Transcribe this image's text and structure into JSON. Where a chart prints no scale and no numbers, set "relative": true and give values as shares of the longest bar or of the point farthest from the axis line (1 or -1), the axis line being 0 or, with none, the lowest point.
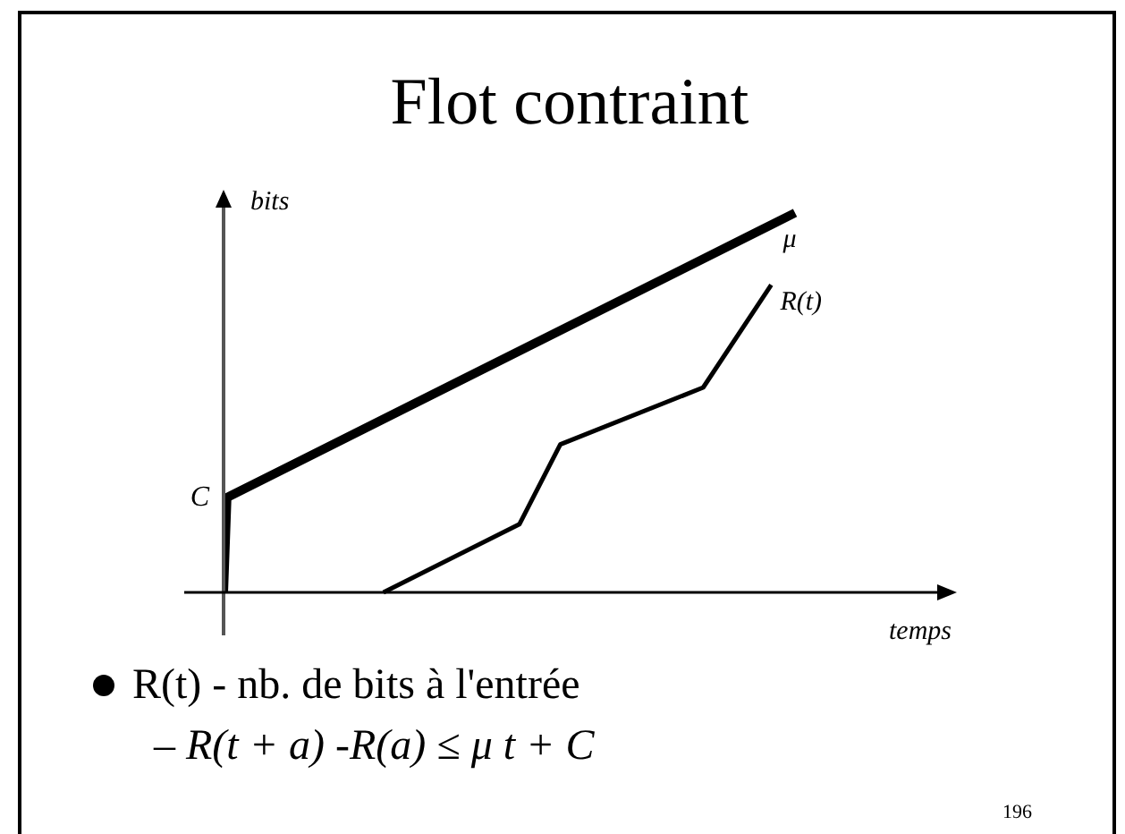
{
  "chart_data": {
    "type": "line",
    "title": "Flot contraint",
    "xlabel": "temps",
    "ylabel": "bits",
    "relative": true,
    "tick_labels": false,
    "legend": false,
    "grid": false,
    "marker": "none",
    "line_style": "solid",
    "categories": [
      null,
      null,
      null,
      null,
      null,
      null,
      null,
      null,
      null,
      null,
      null,
      null,
      null,
      null,
      null,
      null,
      null,
      null,
      null,
      null,
      null,
      null,
      null,
      null,
      null,
      null,
      null,
      null,
      null,
      null,
      null,
      null,
      null,
      null,
      null,
      null,
      null,
      null,
      null,
      null,
      null,
      null,
      null,
      null,
      null,
      null,
      null,
      null,
      null,
      null,
      null,
      null,
      null,
      null,
      null,
      null,
      null,
      null,
      null,
      null,
      null,
      null,
      null,
      null,
      null,
      null,
      null,
      null,
      null,
      null,
      null,
      null,
      null,
      null,
      null,
      null,
      null,
      null,
      null,
      null,
      null,
      null,
      null,
      null,
      null,
      null,
      null,
      null,
      null,
      null,
      null,
      null,
      null,
      null,
      null,
      null,
      null,
      null,
      null,
      null,
      null,
      null,
      null,
      null,
      null,
      null,
      null,
      null,
      null,
      null,
      null,
      null,
      null,
      null,
      null,
      null,
      null,
      null,
      null,
      null,
      null,
      null,
      null,
      null,
      null,
      null,
      null,
      null,
      null,
      null,
      null,
      null,
      null,
      null,
      null,
      null,
      null,
      null,
      null,
      null,
      null,
      null,
      null,
      null,
      null,
      null,
      null,
      null,
      null,
      null,
      null,
      null,
      null,
      null,
      null,
      null,
      null,
      null,
      null,
      null,
      null,
      null,
      null,
      null,
      null,
      null,
      null,
      null,
      null,
      null,
      null,
      null,
      null,
      null,
      null,
      null,
      null,
      null,
      null,
      null,
      null,
      null,
      null,
      null,
      null,
      null,
      null,
      null,
      null,
      null,
      null,
      null,
      null,
      null,
      null,
      null,
      null,
      null,
      null,
      null,
      null,
      null,
      null,
      null,
      null,
      null,
      null,
      null,
      null,
      null,
      null,
      null,
      null,
      null,
      null
    ],
    "series": [
      {
        "name": "μ",
        "color": "#000000",
        "values": [
          0,
          0.25,
          null,
          null,
          null,
          null,
          null,
          null,
          null,
          null,
          null,
          null,
          null,
          null,
          null,
          null,
          null,
          null,
          null,
          null,
          null,
          null,
          null,
          null,
          null,
          null,
          null,
          null,
          null,
          null,
          null,
          null,
          null,
          null,
          null,
          null,
          null,
          null,
          null,
          null,
          null,
          null,
          null,
          null,
          null,
          null,
          null,
          null,
          null,
          null,
          null,
          null,
          null,
          null,
          null,
          null,
          null,
          null,
          null,
          null,
          null,
          null,
          null,
          null,
          null,
          null,
          null,
          null,
          null,
          null,
          null,
          null,
          null,
          null,
          null,
          null,
          null,
          null,
          null,
          null,
          null,
          null,
          null,
          null,
          null,
          null,
          null,
          null,
          null,
          null,
          null,
          null,
          null,
          null,
          null,
          null,
          null,
          null,
          null,
          null,
          null,
          null,
          null,
          null,
          null,
          null,
          null,
          null,
          null,
          null,
          null,
          null,
          null,
          null,
          null,
          null,
          null,
          null,
          null,
          null,
          null,
          null,
          null,
          null,
          null,
          null,
          null,
          null,
          null,
          null,
          null,
          null,
          null,
          null,
          null,
          null,
          null,
          null,
          null,
          null,
          null,
          null,
          null,
          null,
          null,
          null,
          null,
          null,
          null,
          null,
          null,
          null,
          null,
          null,
          null,
          null,
          null,
          null,
          null,
          null,
          null,
          null,
          null,
          null,
          null,
          null,
          null,
          null,
          1,
          null,
          null,
          null,
          null,
          null,
          null,
          null,
          null,
          null,
          null,
          null,
          null,
          null,
          null,
          null,
          null,
          null,
          null,
          null,
          null,
          null,
          null,
          null,
          null,
          null,
          null,
          null,
          null,
          null,
          null,
          null,
          null,
          null,
          null,
          null,
          null,
          null,
          null,
          null,
          null,
          null,
          null,
          null,
          null,
          null,
          null
        ]
      },
      {
        "name": "R(t)",
        "color": "#000000",
        "values": [
          null,
          null,
          null,
          null,
          null,
          null,
          null,
          null,
          null,
          null,
          null,
          null,
          null,
          null,
          null,
          null,
          null,
          null,
          null,
          null,
          null,
          null,
          null,
          null,
          null,
          null,
          null,
          null,
          null,
          null,
          null,
          null,
          null,
          null,
          null,
          null,
          null,
          null,
          null,
          null,
          null,
          null,
          null,
          null,
          null,
          null,
          null,
          0,
          null,
          null,
          null,
          null,
          null,
          null,
          null,
          null,
          null,
          null,
          null,
          null,
          null,
          null,
          null,
          null,
          null,
          null,
          null,
          null,
          null,
          null,
          null,
          null,
          null,
          null,
          null,
          null,
          null,
          null,
          null,
          null,
          null,
          null,
          null,
          null,
          null,
          null,
          null,
          0.18,
          null,
          null,
          null,
          null,
          null,
          null,
          null,
          null,
          null,
          null,
          null,
          0.39,
          null,
          null,
          null,
          null,
          null,
          null,
          null,
          null,
          null,
          null,
          null,
          null,
          null,
          null,
          null,
          null,
          null,
          null,
          null,
          null,
          null,
          null,
          null,
          null,
          null,
          null,
          null,
          null,
          null,
          null,
          null,
          null,
          null,
          null,
          null,
          null,
          null,
          null,
          null,
          null,
          null,
          0.54,
          null,
          null,
          null,
          null,
          null,
          null,
          null,
          null,
          null,
          null,
          null,
          null,
          null,
          null,
          null,
          null,
          null,
          null,
          null,
          0.81,
          null,
          null,
          null,
          null,
          null,
          null,
          null,
          null,
          null,
          null,
          null,
          null,
          null,
          null,
          null,
          null,
          null,
          null,
          null,
          null,
          null,
          null,
          null,
          null,
          null,
          null,
          null,
          null,
          null,
          null,
          null,
          null,
          null,
          null,
          null,
          null,
          null,
          null,
          null,
          null,
          null,
          null,
          null,
          null,
          null,
          null,
          null,
          null,
          null,
          null,
          null,
          null,
          null
        ]
      }
    ],
    "annotations": [
      "C",
      "R(t) - nb. de bits à l'entrée",
      "– R(t + a) -R(a) ≤ μ t + C",
      "196"
    ]
  }
}
